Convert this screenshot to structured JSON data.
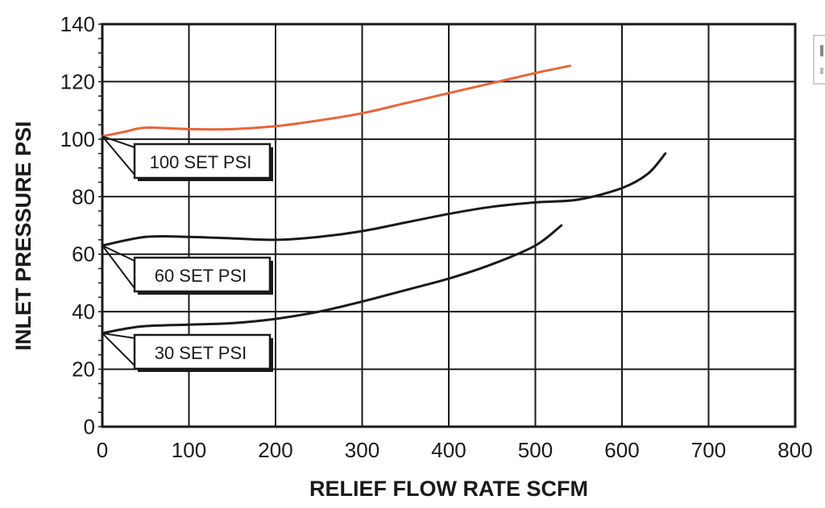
{
  "chart_data": {
    "type": "line",
    "xlabel": "RELIEF FLOW RATE SCFM",
    "ylabel": "INLET PRESSURE PSI",
    "xlim": [
      0,
      800
    ],
    "ylim": [
      0,
      140
    ],
    "x_ticks": [
      "0",
      "100",
      "200",
      "300",
      "400",
      "500",
      "600",
      "700",
      "800"
    ],
    "y_ticks": [
      "0",
      "20",
      "40",
      "60",
      "80",
      "100",
      "120",
      "140"
    ],
    "grid": true,
    "series": [
      {
        "name": "100 SET PSI",
        "color": "#e8643c",
        "x": [
          0,
          25,
          50,
          100,
          150,
          200,
          250,
          300,
          350,
          400,
          450,
          500,
          540
        ],
        "y": [
          101,
          102.5,
          104,
          103.5,
          103.5,
          104.5,
          106.5,
          109,
          112.5,
          116,
          119.5,
          123,
          125.5
        ]
      },
      {
        "name": "60 SET PSI",
        "color": "#1a1a1a",
        "x": [
          0,
          50,
          100,
          150,
          200,
          250,
          300,
          350,
          400,
          450,
          500,
          550,
          600,
          630,
          650
        ],
        "y": [
          63,
          66,
          66,
          65.5,
          65,
          66,
          68,
          71,
          74,
          76.5,
          78,
          79,
          83,
          88,
          95
        ]
      },
      {
        "name": "30 SET PSI",
        "color": "#1a1a1a",
        "x": [
          0,
          25,
          50,
          100,
          150,
          200,
          250,
          300,
          350,
          400,
          450,
          500,
          530
        ],
        "y": [
          32.5,
          34,
          35,
          35.5,
          36,
          37.5,
          40,
          43.5,
          47.5,
          51.5,
          56.5,
          63,
          70
        ]
      }
    ]
  }
}
